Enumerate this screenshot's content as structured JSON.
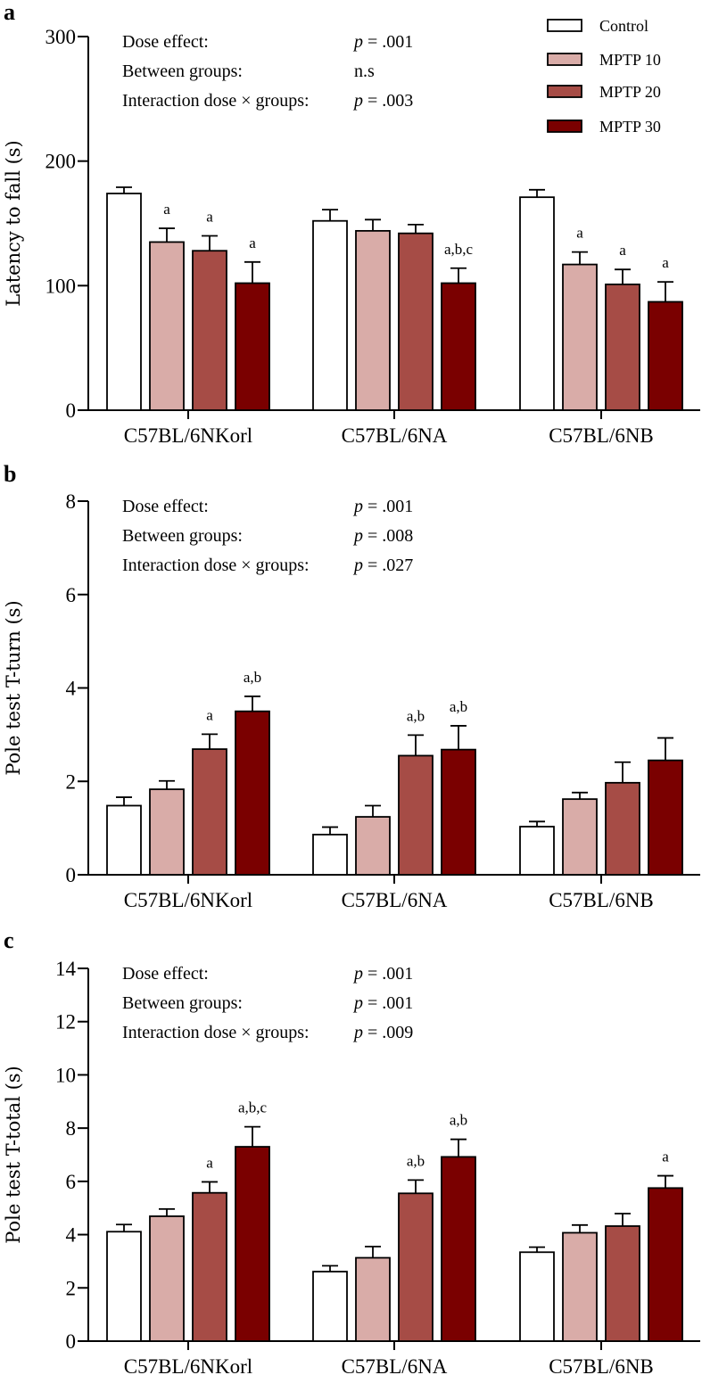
{
  "legend": [
    {
      "name": "Control",
      "color": "#ffffff"
    },
    {
      "name": "MPTP 10",
      "color": "#d9aca8"
    },
    {
      "name": "MPTP 20",
      "color": "#a64c46"
    },
    {
      "name": "MPTP 30",
      "color": "#7a0000"
    }
  ],
  "chart_data": [
    {
      "panel": "a",
      "type": "bar",
      "ylabel": "Latency to fall (s)",
      "ylim": [
        0,
        300
      ],
      "yticks": [
        "0",
        "100",
        "200",
        "300"
      ],
      "ytick_values": [
        0,
        100,
        200,
        300
      ],
      "categories": [
        "C57BL/6NKorl",
        "C57BL/6NA",
        "C57BL/6NB"
      ],
      "stats": [
        {
          "label": "Dose effect:",
          "p": "p",
          "value": " = .001"
        },
        {
          "label": "Between groups:",
          "p": "",
          "value": "n.s"
        },
        {
          "label": "Interaction dose × groups:",
          "p": "p",
          "value": " = .003"
        }
      ],
      "series": [
        {
          "name": "Control",
          "values": [
            174,
            152,
            171
          ],
          "sem": [
            5,
            9,
            6
          ],
          "sig": [
            "",
            "",
            ""
          ]
        },
        {
          "name": "MPTP 10",
          "values": [
            135,
            144,
            117
          ],
          "sem": [
            11,
            9,
            10
          ],
          "sig": [
            "a",
            "",
            "a"
          ]
        },
        {
          "name": "MPTP 20",
          "values": [
            128,
            142,
            101
          ],
          "sem": [
            12,
            7,
            12
          ],
          "sig": [
            "a",
            "",
            "a"
          ]
        },
        {
          "name": "MPTP 30",
          "values": [
            102,
            102,
            87
          ],
          "sem": [
            17,
            12,
            16
          ],
          "sig": [
            "a",
            "a,b,c",
            "a"
          ]
        }
      ]
    },
    {
      "panel": "b",
      "type": "bar",
      "ylabel": "Pole test T-turn (s)",
      "ylim": [
        0,
        8
      ],
      "yticks": [
        "0",
        "2",
        "4",
        "6",
        "8"
      ],
      "ytick_values": [
        0,
        2,
        4,
        6,
        8
      ],
      "categories": [
        "C57BL/6NKorl",
        "C57BL/6NA",
        "C57BL/6NB"
      ],
      "stats": [
        {
          "label": "Dose effect:",
          "p": "p",
          "value": " = .001"
        },
        {
          "label": "Between groups:",
          "p": "p",
          "value": " = .008"
        },
        {
          "label": "Interaction dose × groups:",
          "p": "p",
          "value": " = .027"
        }
      ],
      "series": [
        {
          "name": "Control",
          "values": [
            1.48,
            0.86,
            1.03
          ],
          "sem": [
            0.18,
            0.16,
            0.11
          ],
          "sig": [
            "",
            "",
            ""
          ]
        },
        {
          "name": "MPTP 10",
          "values": [
            1.83,
            1.24,
            1.62
          ],
          "sem": [
            0.18,
            0.24,
            0.14
          ],
          "sig": [
            "",
            "",
            ""
          ]
        },
        {
          "name": "MPTP 20",
          "values": [
            2.69,
            2.55,
            1.97
          ],
          "sem": [
            0.32,
            0.44,
            0.44
          ],
          "sig": [
            "a",
            "a,b",
            ""
          ]
        },
        {
          "name": "MPTP 30",
          "values": [
            3.5,
            2.68,
            2.45
          ],
          "sem": [
            0.32,
            0.51,
            0.48
          ],
          "sig": [
            "a,b",
            "a,b",
            ""
          ]
        }
      ]
    },
    {
      "panel": "c",
      "type": "bar",
      "ylabel": "Pole test T-total (s)",
      "ylim": [
        0,
        14
      ],
      "yticks": [
        "0",
        "2",
        "4",
        "6",
        "8",
        "10",
        "12",
        "14"
      ],
      "ytick_values": [
        0,
        2,
        4,
        6,
        8,
        10,
        12,
        14
      ],
      "categories": [
        "C57BL/6NKorl",
        "C57BL/6NA",
        "C57BL/6NB"
      ],
      "stats": [
        {
          "label": "Dose effect:",
          "p": "p",
          "value": " = .001"
        },
        {
          "label": "Between groups:",
          "p": "p",
          "value": " = .001"
        },
        {
          "label": "Interaction dose × groups:",
          "p": "p",
          "value": " = .009"
        }
      ],
      "series": [
        {
          "name": "Control",
          "values": [
            4.11,
            2.61,
            3.34
          ],
          "sem": [
            0.27,
            0.22,
            0.19
          ],
          "sig": [
            "",
            "",
            ""
          ]
        },
        {
          "name": "MPTP 10",
          "values": [
            4.69,
            3.13,
            4.07
          ],
          "sem": [
            0.27,
            0.42,
            0.29
          ],
          "sig": [
            "",
            "",
            ""
          ]
        },
        {
          "name": "MPTP 20",
          "values": [
            5.57,
            5.55,
            4.32
          ],
          "sem": [
            0.41,
            0.5,
            0.47
          ],
          "sig": [
            "a",
            "a,b",
            ""
          ]
        },
        {
          "name": "MPTP 30",
          "values": [
            7.3,
            6.92,
            5.75
          ],
          "sem": [
            0.75,
            0.66,
            0.46
          ],
          "sig": [
            "a,b,c",
            "a,b",
            "a"
          ]
        }
      ]
    }
  ]
}
